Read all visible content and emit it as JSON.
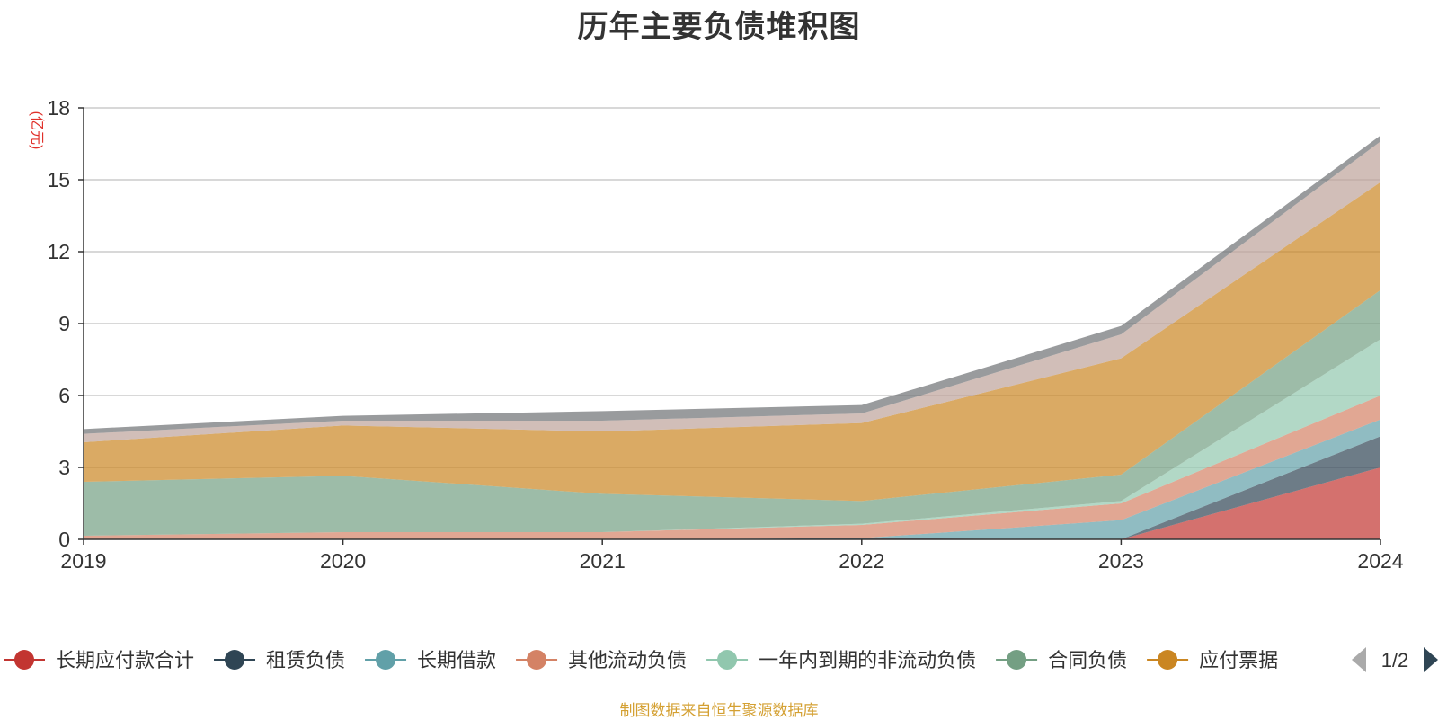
{
  "chart_data": {
    "type": "area",
    "stacked": true,
    "title": "历年主要负债堆积图",
    "ylabel": "(亿元)",
    "xlabel": "",
    "categories": [
      "2019",
      "2020",
      "2021",
      "2022",
      "2023",
      "2024"
    ],
    "ylim": [
      0,
      18
    ],
    "yticks": [
      0,
      3,
      6,
      9,
      12,
      15,
      18
    ],
    "grid": true,
    "legend_position": "bottom",
    "legend_page": "1/2",
    "series": [
      {
        "name": "长期应付款合计",
        "color": "#c23531",
        "values": [
          0,
          0,
          0,
          0,
          0,
          3.0
        ]
      },
      {
        "name": "租赁负债",
        "color": "#2f4554",
        "values": [
          0,
          0,
          0,
          0.05,
          0,
          1.3
        ]
      },
      {
        "name": "长期借款",
        "color": "#61a0a8",
        "values": [
          0,
          0,
          0,
          0,
          0.8,
          0.7
        ]
      },
      {
        "name": "其他流动负债",
        "color": "#d48265",
        "values": [
          0.15,
          0.3,
          0.3,
          0.55,
          0.7,
          1.0
        ]
      },
      {
        "name": "一年内到期的非流动负债",
        "color": "#91c7ae",
        "values": [
          0,
          0,
          0,
          0.05,
          0.1,
          2.35
        ]
      },
      {
        "name": "合同负债",
        "color": "#749f83",
        "values": [
          2.25,
          2.35,
          1.6,
          0.95,
          1.1,
          2.05
        ]
      },
      {
        "name": "应付票据",
        "color": "#ca8622",
        "values": [
          1.65,
          2.1,
          2.6,
          3.25,
          4.85,
          4.5
        ]
      },
      {
        "name": "",
        "color": "#bda29a",
        "values": [
          0.35,
          0.2,
          0.45,
          0.4,
          1.0,
          1.7
        ]
      },
      {
        "name": "",
        "color": "#6e7074",
        "values": [
          0.2,
          0.2,
          0.4,
          0.35,
          0.35,
          0.25
        ]
      }
    ]
  },
  "footer": {
    "source": "制图数据来自恒生聚源数据库"
  },
  "colors": {
    "axis": "#333333",
    "grid": "#cccccc",
    "ylabel": "#e0302a",
    "legend_arrow_inactive": "#aaaaaa",
    "legend_arrow_active": "#2f4554"
  }
}
